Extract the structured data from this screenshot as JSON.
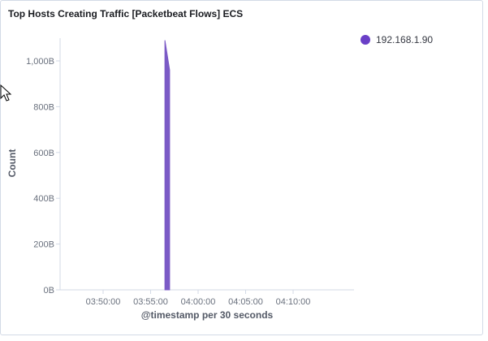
{
  "panel": {
    "title": "Top Hosts Creating Traffic [Packetbeat Flows] ECS"
  },
  "colors": {
    "series": "#7b5ac6",
    "legend_dot": "#6a3fc7",
    "axis": "#d3dae6",
    "tick_text": "#69707d"
  },
  "legend": {
    "items": [
      {
        "label": "192.168.1.90",
        "color": "#6a3fc7"
      }
    ],
    "placement": "top-right"
  },
  "chart_data": {
    "type": "area",
    "title": "Top Hosts Creating Traffic [Packetbeat Flows] ECS",
    "xlabel": "@timestamp per 30 seconds",
    "ylabel": "Count",
    "x_tick_labels": [
      "03:50:00",
      "03:55:00",
      "04:00:00",
      "04:05:00",
      "04:10:00"
    ],
    "x_tick_minutes": [
      -10,
      -5,
      0,
      5,
      10
    ],
    "y_tick_labels": [
      "0B",
      "200B",
      "400B",
      "600B",
      "800B",
      "1,000B"
    ],
    "y_tick_values": [
      0,
      200,
      400,
      600,
      800,
      1000
    ],
    "ylim": [
      0,
      1000
    ],
    "series": [
      {
        "name": "192.168.1.90",
        "points": [
          {
            "x": "03:56:30",
            "x_minutes": -3.5,
            "y": 0
          },
          {
            "x": "03:56:30",
            "x_minutes": -3.5,
            "y": 1090
          },
          {
            "x": "03:57:00",
            "x_minutes": -3.0,
            "y": 960
          },
          {
            "x": "03:57:00",
            "x_minutes": -3.0,
            "y": 0
          }
        ]
      }
    ],
    "grid": false
  }
}
